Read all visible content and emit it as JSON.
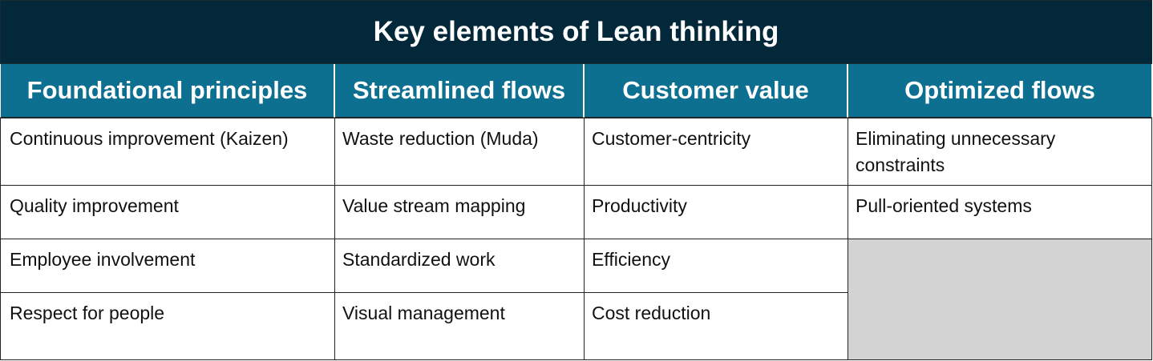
{
  "title": "Key elements of Lean thinking",
  "colors": {
    "title_bg": "#02283a",
    "header_bg": "#0e7091",
    "empty_cell_bg": "#d3d3d3"
  },
  "columns": [
    {
      "header": "Foundational principles",
      "items": [
        "Continuous improvement (Kaizen)",
        "Quality improvement",
        "Employee involvement",
        "Respect for people"
      ]
    },
    {
      "header": "Streamlined flows",
      "items": [
        "Waste reduction (Muda)",
        "Value stream mapping",
        "Standardized work",
        "Visual management"
      ]
    },
    {
      "header": "Customer value",
      "items": [
        "Customer-centricity",
        "Productivity",
        "Efficiency",
        "Cost reduction"
      ]
    },
    {
      "header": "Optimized flows",
      "items": [
        "Eliminating unnecessary constraints",
        "Pull-oriented systems"
      ]
    }
  ]
}
